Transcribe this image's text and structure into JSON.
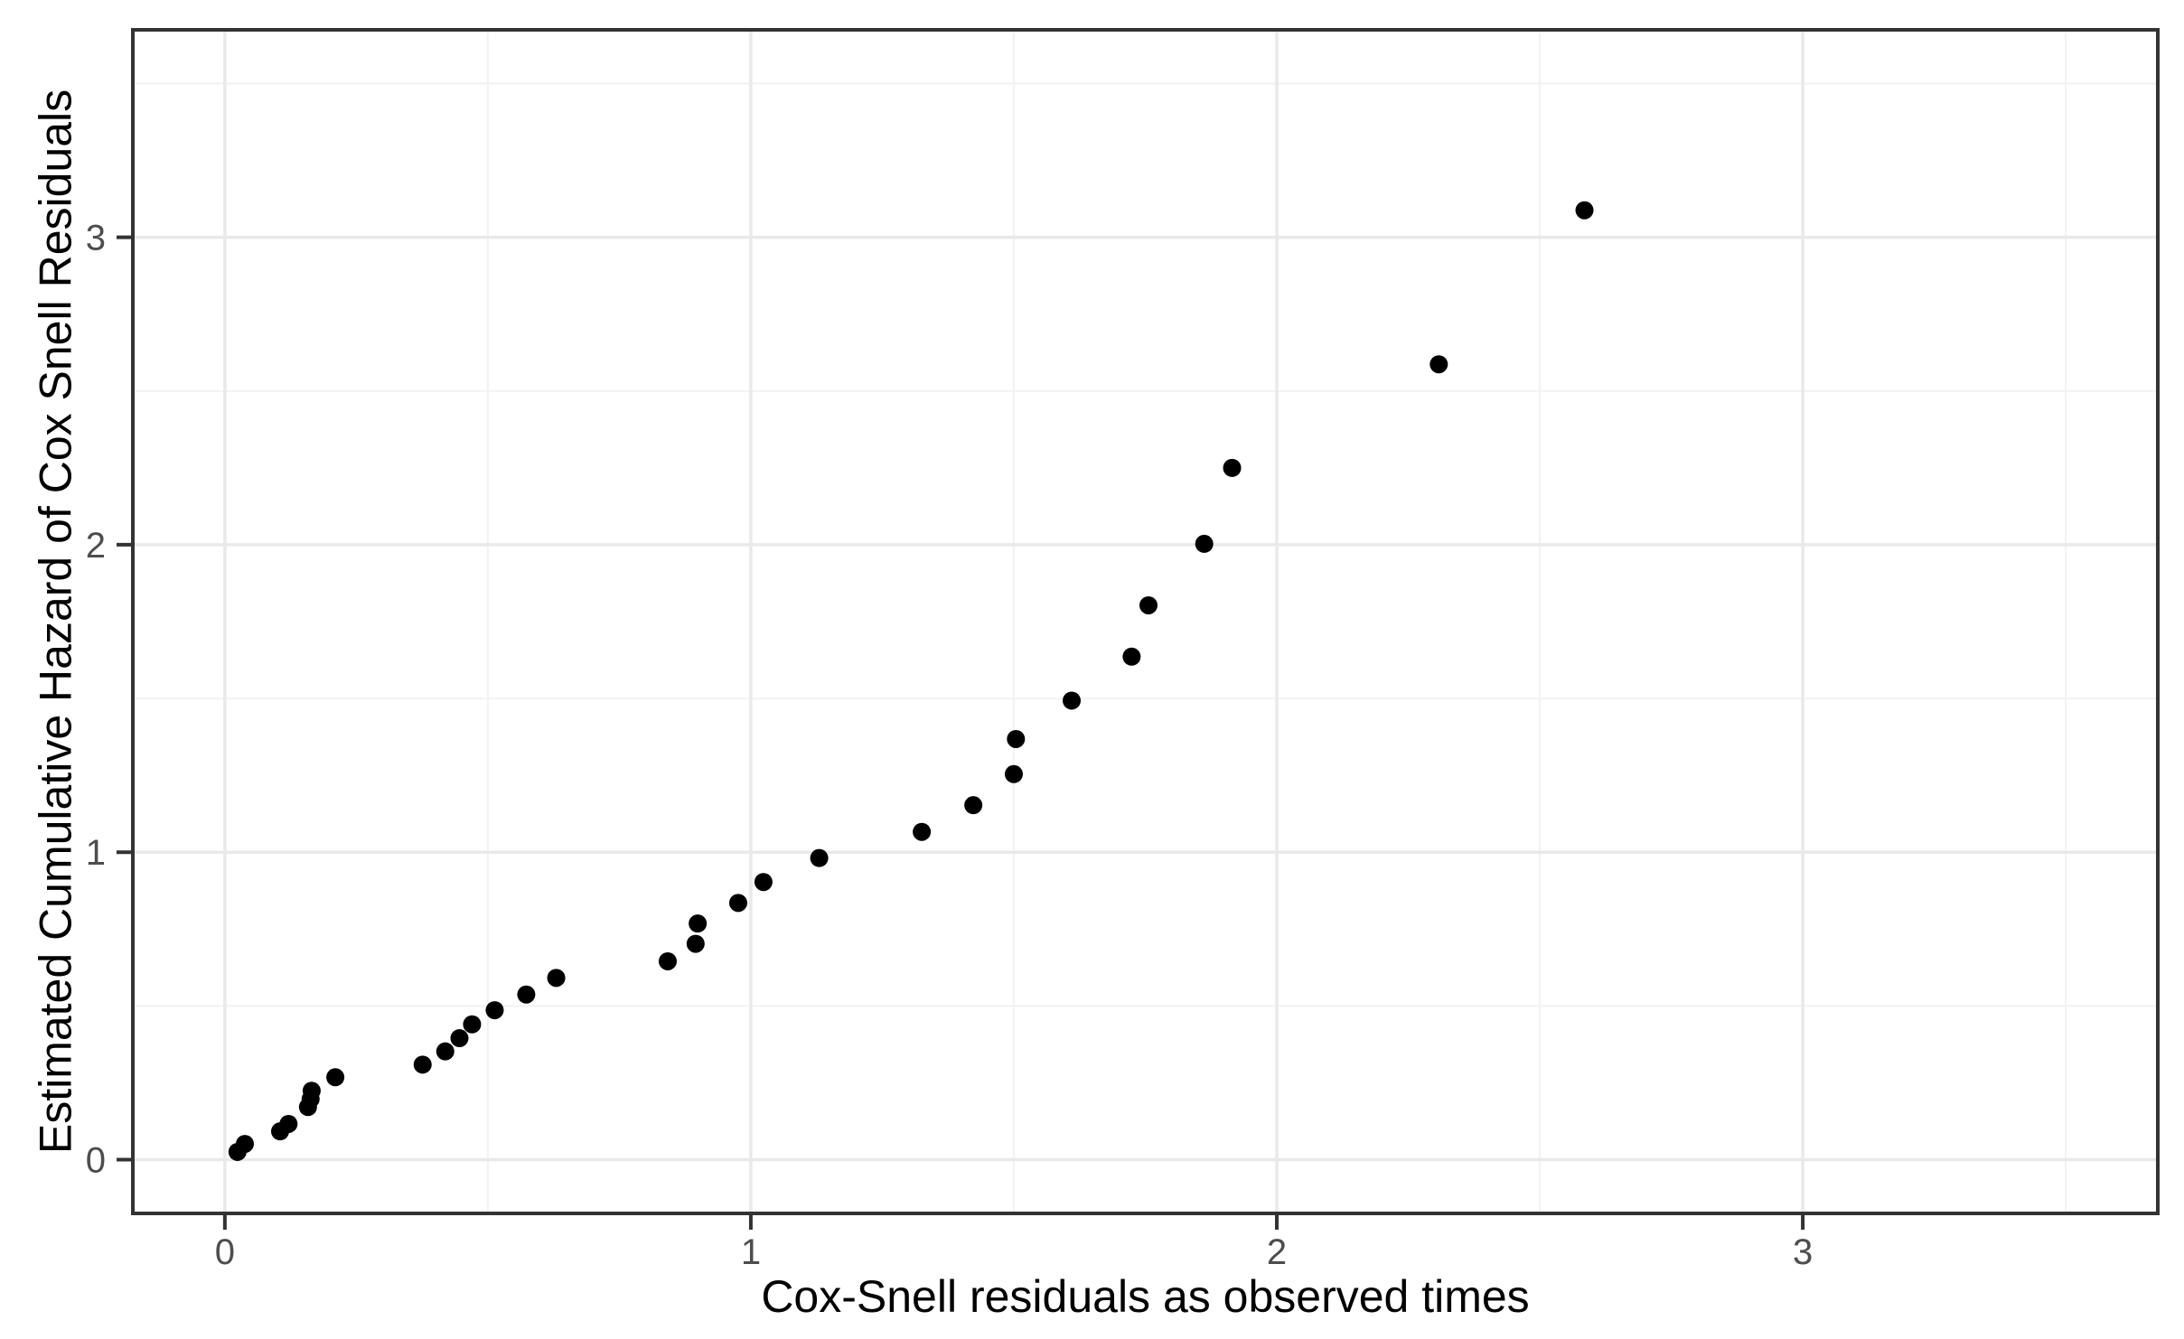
{
  "chart_data": {
    "type": "scatter",
    "title": "",
    "xlabel": "Cox-Snell residuals as observed times",
    "ylabel": "Estimated Cumulative Hazard of Cox Snell Residuals",
    "xlim": [
      -0.175,
      3.675
    ],
    "ylim": [
      -0.175,
      3.675
    ],
    "x_ticks": [
      0,
      1,
      2,
      3
    ],
    "y_ticks": [
      0,
      1,
      2,
      3
    ],
    "x_minor_gridlines": [
      0.5,
      1.5,
      2.5,
      3.5
    ],
    "y_minor_gridlines": [
      0.5,
      1.5,
      2.5,
      3.5
    ],
    "grid": true,
    "legend": false,
    "theme": "ggplot2-theme-bw",
    "points": [
      [
        0.024,
        0.025
      ],
      [
        0.038,
        0.051
      ],
      [
        0.105,
        0.092
      ],
      [
        0.121,
        0.116
      ],
      [
        0.158,
        0.171
      ],
      [
        0.163,
        0.197
      ],
      [
        0.165,
        0.224
      ],
      [
        0.21,
        0.268
      ],
      [
        0.376,
        0.309
      ],
      [
        0.419,
        0.352
      ],
      [
        0.446,
        0.395
      ],
      [
        0.47,
        0.44
      ],
      [
        0.513,
        0.486
      ],
      [
        0.573,
        0.537
      ],
      [
        0.63,
        0.591
      ],
      [
        0.842,
        0.645
      ],
      [
        0.895,
        0.702
      ],
      [
        0.899,
        0.768
      ],
      [
        0.976,
        0.835
      ],
      [
        1.024,
        0.903
      ],
      [
        1.13,
        0.981
      ],
      [
        1.325,
        1.066
      ],
      [
        1.423,
        1.153
      ],
      [
        1.5,
        1.254
      ],
      [
        1.504,
        1.368
      ],
      [
        1.61,
        1.493
      ],
      [
        1.724,
        1.636
      ],
      [
        1.756,
        1.803
      ],
      [
        1.862,
        2.003
      ],
      [
        1.915,
        2.25
      ],
      [
        2.308,
        2.587
      ],
      [
        2.585,
        3.088
      ]
    ],
    "style": {
      "point_color": "#000000",
      "point_radius_px": 10,
      "panel_border_color": "#333333",
      "panel_background": "#FFFFFF",
      "grid_major_color": "#E9E9E9",
      "grid_minor_color": "#F2F2F2",
      "tick_mark_color": "#333333",
      "tick_label_color": "#4D4D4D",
      "axis_title_color": "#000000"
    }
  }
}
